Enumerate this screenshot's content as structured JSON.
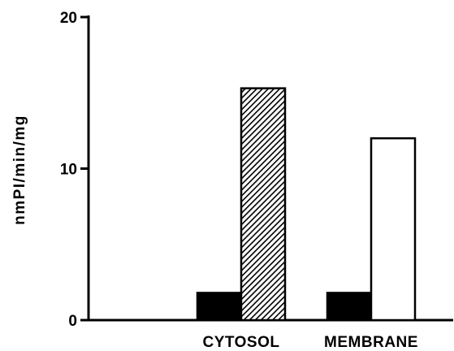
{
  "chart_data": {
    "type": "bar",
    "categories": [
      "",
      "CYTOSOL",
      "MEMBRANE"
    ],
    "series": [
      {
        "values": [
          null,
          1.8,
          1.8
        ],
        "fill": "solid",
        "color": "#000000"
      },
      {
        "values": [
          null,
          15.3,
          null
        ],
        "fill": "hatched",
        "color": "#000000"
      },
      {
        "values": [
          null,
          null,
          12.0
        ],
        "fill": "open",
        "color": "#ffffff"
      }
    ],
    "ylabel": "nmPI/min/mg",
    "xlabel": "",
    "title": "",
    "ylim": [
      0,
      20
    ],
    "yticks": [
      "0",
      "10",
      "20"
    ],
    "yticks_values": [
      0,
      10,
      20
    ],
    "grid": false,
    "legend": "none"
  }
}
